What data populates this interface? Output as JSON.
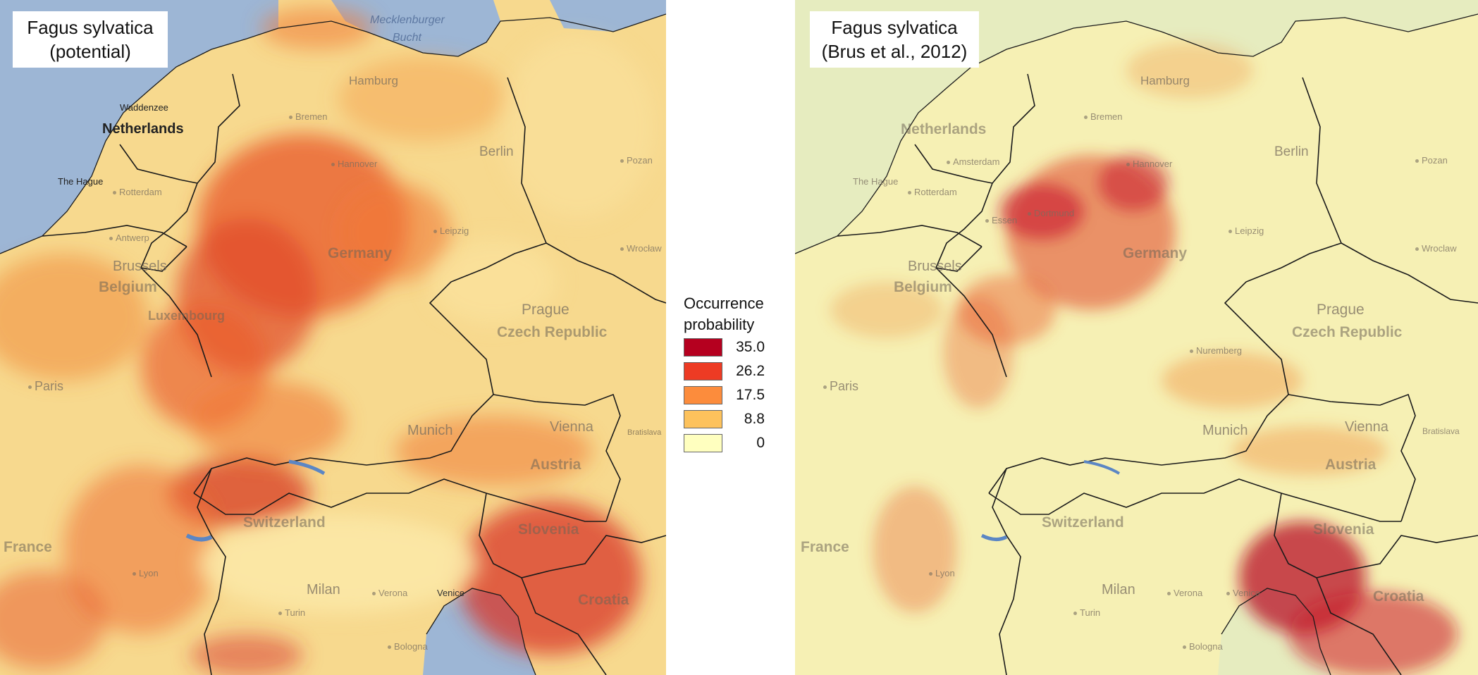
{
  "left_panel": {
    "title_line1": "Fagus sylvatica",
    "title_line2": "(potential)",
    "labels": {
      "mecklenburger": "Mecklenburger",
      "bucht": "Bucht",
      "hamburg": "Hamburg",
      "netherlands": "Netherlands",
      "wadden": "Waddenzee",
      "the_hague": "The Hague",
      "bremen": "Bremen",
      "rotterdam": "Rotterdam",
      "antwerp": "Antwerp",
      "brussels": "Brussels",
      "belgium": "Belgium",
      "luxembourg": "Luxembourg",
      "berlin": "Berlin",
      "hannover": "Hannover",
      "poznan": "Pozan",
      "leipzig": "Leipzig",
      "wroclaw": "Wrocław",
      "germany": "Germany",
      "prague": "Prague",
      "czech": "Czech Republic",
      "paris": "Paris",
      "munich": "Munich",
      "vienna": "Vienna",
      "austria": "Austria",
      "switzerland": "Switzerland",
      "france": "France",
      "slovenia": "Slovenia",
      "croatia": "Croatia",
      "milan": "Milan",
      "verona": "Verona",
      "venice": "Venice",
      "turin": "Turin",
      "lyon": "Lyon",
      "bologna": "Bologna",
      "bratislava": "Bratislava"
    }
  },
  "right_panel": {
    "title_line1": "Fagus sylvatica",
    "title_line2": "(Brus et al., 2012)",
    "labels": {
      "hamburg": "Hamburg",
      "netherlands": "Netherlands",
      "amsterdam": "Amsterdam",
      "the_hague": "The Hague",
      "rotterdam": "Rotterdam",
      "bremen": "Bremen",
      "hannover": "Hannover",
      "berlin": "Berlin",
      "poznan": "Pozan",
      "dortmund": "Dortmund",
      "essen": "Essen",
      "leipzig": "Leipzig",
      "wroclaw": "Wroclaw",
      "brussels": "Brussels",
      "belgium": "Belgium",
      "germany": "Germany",
      "prague": "Prague",
      "czech": "Czech Republic",
      "nuremberg": "Nuremberg",
      "paris": "Paris",
      "munich": "Munich",
      "vienna": "Vienna",
      "bratislava": "Bratislava",
      "austria": "Austria",
      "switzerland": "Switzerland",
      "france": "France",
      "slovenia": "Slovenia",
      "croatia": "Croatia",
      "lyon": "Lyon",
      "milan": "Milan",
      "verona": "Verona",
      "venice": "Venice",
      "turin": "Turin",
      "bologna": "Bologna"
    }
  },
  "legend": {
    "title_line1": "Occurrence",
    "title_line2": "probability",
    "items": [
      {
        "label": "35.0",
        "color": "#b5001f"
      },
      {
        "label": "26.2",
        "color": "#ed3b24"
      },
      {
        "label": "17.5",
        "color": "#fc8c3c"
      },
      {
        "label": "8.8",
        "color": "#fdc25c"
      },
      {
        "label": "0",
        "color": "#ffffbf"
      }
    ]
  },
  "colors": {
    "sea": "#9db6d5",
    "left_base": "#f7d98e",
    "right_base": "#f6f0b4",
    "right_outside": "#e6ecbf",
    "border": "#1a1a1a"
  }
}
